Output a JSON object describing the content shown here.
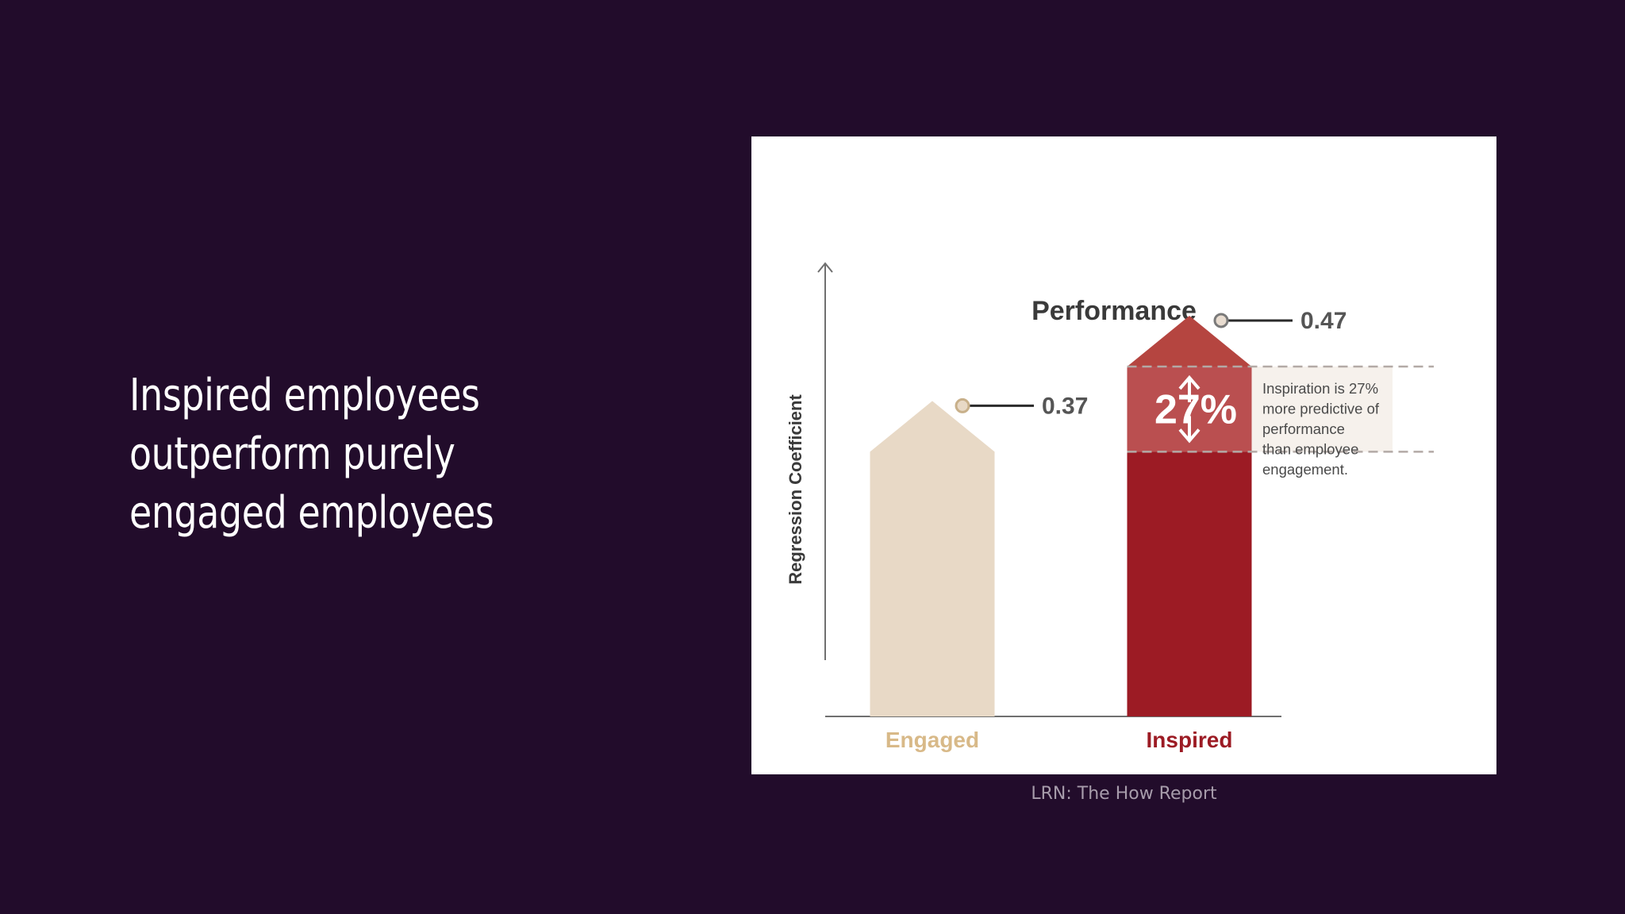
{
  "slide": {
    "title": "Inspired employees outperform purely engaged employees",
    "source": "LRN: The How Report"
  },
  "chart_data": {
    "type": "bar",
    "title": "Performance",
    "ylabel": "Regression Coefficient",
    "xlabel": "",
    "categories": [
      "Engaged",
      "Inspired"
    ],
    "values": [
      0.37,
      0.47
    ],
    "ylim": [
      0,
      0.55
    ],
    "grid": false,
    "legend": "none",
    "value_labels": [
      "0.37",
      "0.47"
    ],
    "difference": {
      "label": "27%",
      "note": "Inspiration is 27% more predictive of performance than employee engagement.",
      "from_value": 0.37,
      "to_value": 0.47
    },
    "colors": {
      "Engaged": "#e8d9c6",
      "Inspired": "#9c1b24",
      "inspired_tip": "#b54540",
      "highlight_band": "#ba4f50",
      "note_background": "#f6f1ec",
      "engaged_label": "#d8b988",
      "axis": "#707070",
      "text_dark": "#3a3a3a"
    }
  }
}
